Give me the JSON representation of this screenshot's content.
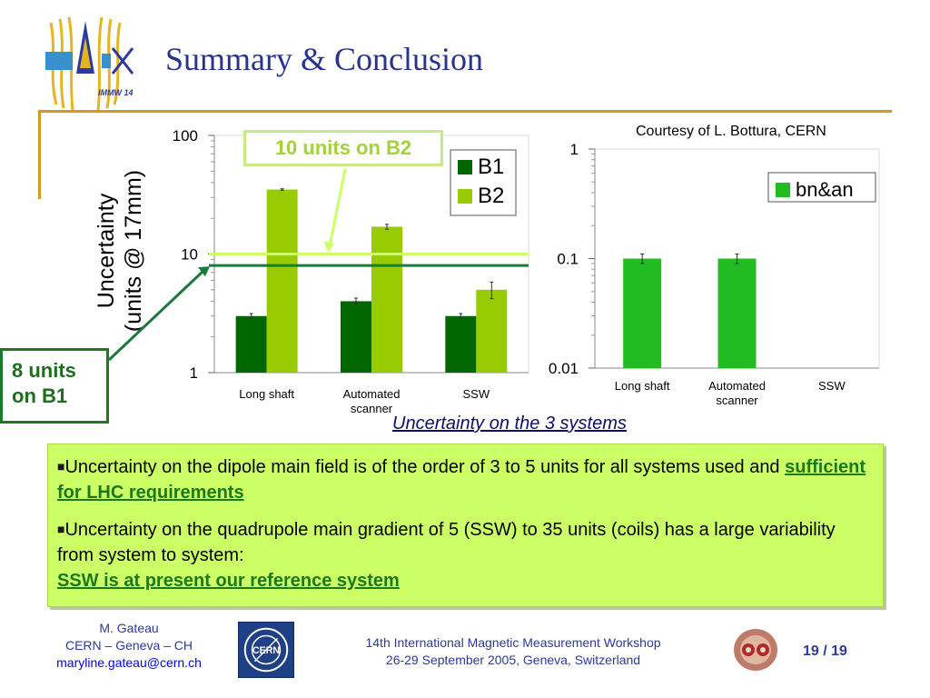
{
  "slide": {
    "title": "Summary & Conclusion",
    "courtesy": "Courtesy of L. Bottura, CERN",
    "logo_text": "IMMW 14"
  },
  "chart_data": [
    {
      "type": "bar",
      "categories": [
        "Long shaft",
        "Automated scanner",
        "SSW"
      ],
      "category_lines": [
        [
          "Long shaft"
        ],
        [
          "Automated",
          "scanner"
        ],
        [
          "SSW"
        ]
      ],
      "y_scale": "log",
      "ylim": [
        1,
        100
      ],
      "yticks": [
        "1",
        "10",
        "100"
      ],
      "ylabel_lines": [
        "Uncertainty",
        "(units @  17mm)"
      ],
      "legend_position": "top-right",
      "series": [
        {
          "name": "B1",
          "values": [
            3,
            4,
            3
          ],
          "color": "#006600",
          "errors": [
            0.15,
            0.25,
            0.15
          ]
        },
        {
          "name": "B2",
          "values": [
            35,
            17,
            5
          ],
          "color": "#99cc00",
          "errors": [
            0.5,
            0.8,
            0.8
          ]
        }
      ],
      "reference_lines": [
        {
          "value": 10,
          "color": "#ccff66"
        },
        {
          "value": 8,
          "color": "#1a7a3a"
        }
      ]
    },
    {
      "type": "bar",
      "categories": [
        "Long shaft",
        "Automated scanner",
        "SSW"
      ],
      "category_lines": [
        [
          "Long shaft"
        ],
        [
          "Automated",
          "scanner"
        ],
        [
          "SSW"
        ]
      ],
      "y_scale": "log",
      "ylim": [
        0.01,
        1
      ],
      "yticks": [
        "0.01",
        "0.1",
        "1"
      ],
      "legend_position": "top-right",
      "series": [
        {
          "name": "bn&an",
          "values": [
            0.1,
            0.1,
            null
          ],
          "color": "#22bb22",
          "errors": [
            0.01,
            0.01,
            null
          ]
        }
      ]
    }
  ],
  "callouts": {
    "b2": "10 units on B2",
    "b1_line1": "8 units",
    "b1_line2": "on B1"
  },
  "caption": "Uncertainty on the 3 systems",
  "summary": {
    "bullet1_text": "Uncertainty on the dipole main field is of the order of 3 to 5 units for all systems used and ",
    "bullet1_link": "sufficient for LHC requirements",
    "bullet2_text": "Uncertainty on the quadrupole main gradient of 5 (SSW) to 35 units (coils) has a large variability from system to system:",
    "bullet2_link": "SSW is at present our reference system"
  },
  "footer": {
    "author": "M. Gateau",
    "affiliation": "CERN – Geneva – CH",
    "email": "maryline.gateau@cern.ch",
    "workshop_line1": "14th International Magnetic Measurement Workshop",
    "workshop_line2": "26-29 September 2005, Geneva, Switzerland",
    "page": "19",
    "page_total": "19",
    "cern_logo_text": "CERN"
  }
}
